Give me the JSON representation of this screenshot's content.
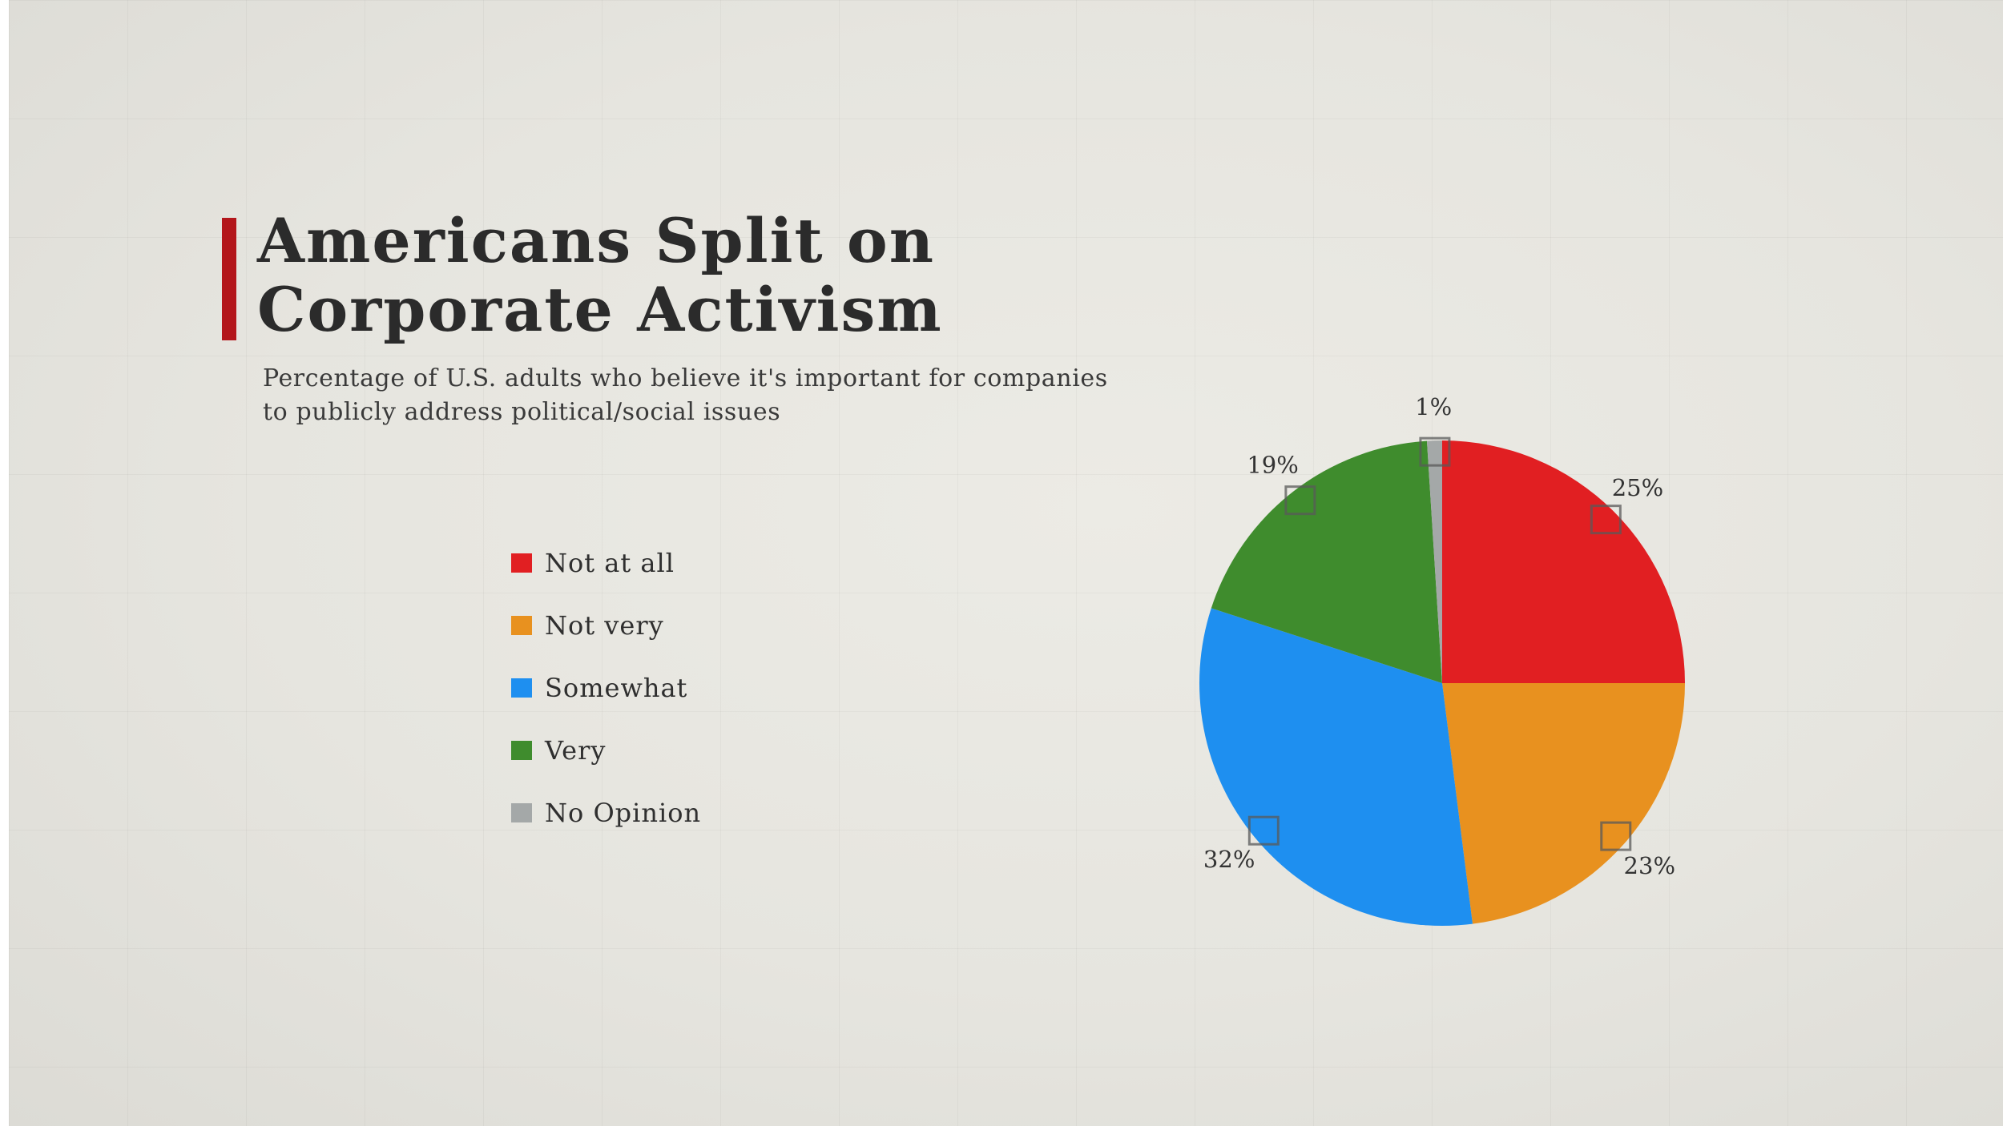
{
  "title": "Americans Split on\nCorporate Activism",
  "subtitle": "Percentage of U.S. adults who believe it's important for companies\nto publicly address political/social issues",
  "colors": {
    "accent_bar": "#b3161b",
    "Not at all": "#e11f22",
    "Not very": "#e8911f",
    "Somewhat": "#1e8ff0",
    "Very": "#3f8c2d",
    "No Opinion": "#a4a8a8"
  },
  "legend": [
    {
      "label": "Not at all",
      "color": "#e11f22"
    },
    {
      "label": "Not very",
      "color": "#e8911f"
    },
    {
      "label": "Somewhat",
      "color": "#1e8ff0"
    },
    {
      "label": "Very",
      "color": "#3f8c2d"
    },
    {
      "label": "No Opinion",
      "color": "#a4a8a8"
    }
  ],
  "chart_data": {
    "type": "pie",
    "title": "Americans Split on\nCorporate Activism",
    "subtitle": "Percentage of U.S. adults who believe it's important for companies\nto publicly address political/social issues",
    "legend_position": "left",
    "start": "top, clockwise",
    "slices": [
      {
        "label": "Not at all",
        "value": 25,
        "display": "25%",
        "color": "#e11f22"
      },
      {
        "label": "Not very",
        "value": 23,
        "display": "23%",
        "color": "#e8911f"
      },
      {
        "label": "Somewhat",
        "value": 32,
        "display": "32%",
        "color": "#1e8ff0"
      },
      {
        "label": "Very",
        "value": 19,
        "display": "19%",
        "color": "#3f8c2d"
      },
      {
        "label": "No Opinion",
        "value": 1,
        "display": "1%",
        "color": "#a4a8a8"
      }
    ]
  }
}
